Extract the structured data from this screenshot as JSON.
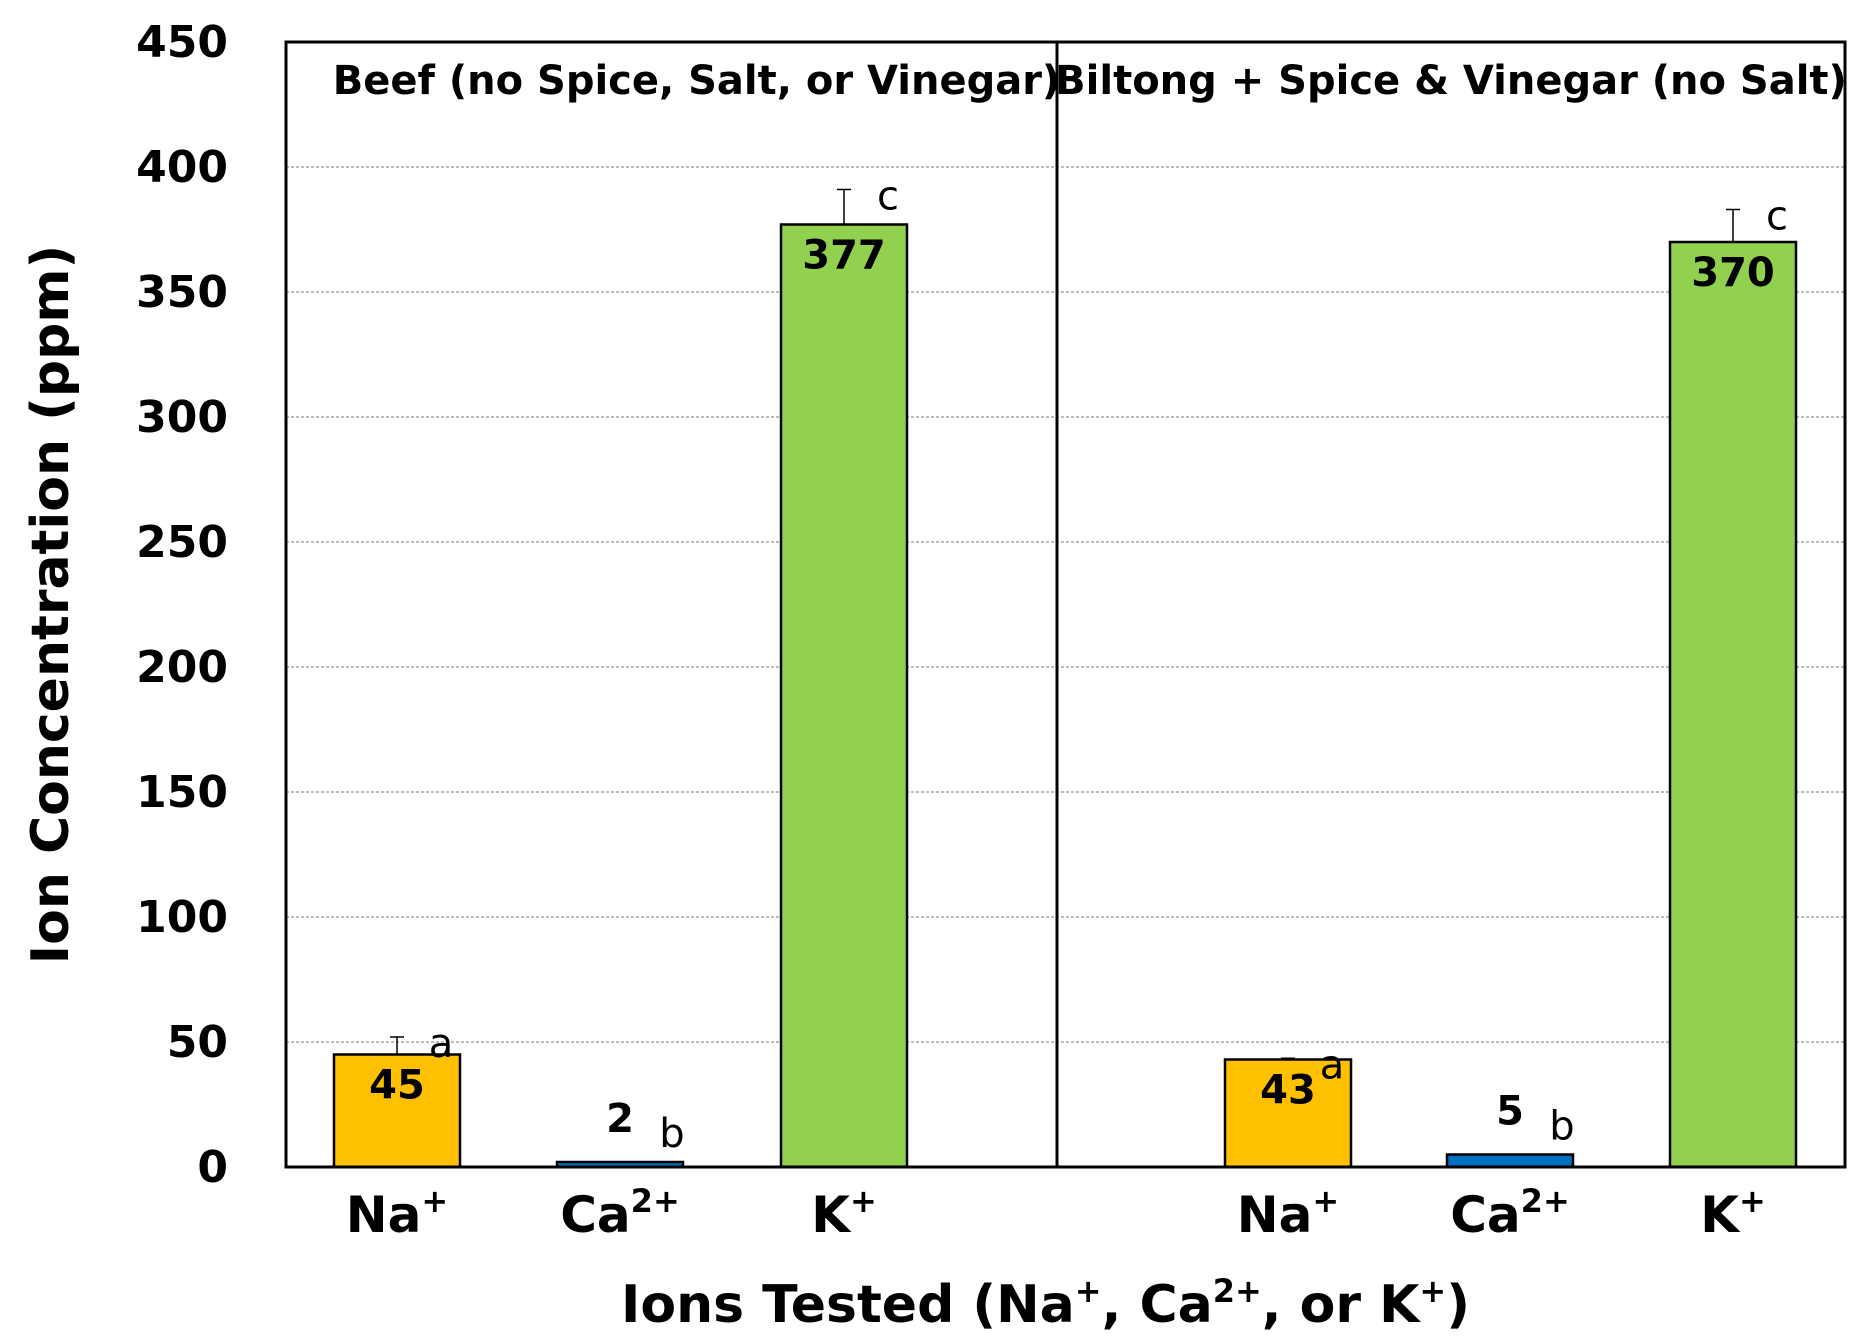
{
  "chart_data": {
    "type": "bar",
    "ylabel": "Ion Concentration (ppm)",
    "xlabel": {
      "parts": [
        {
          "text": "Ions Tested (Na"
        },
        {
          "text": "+",
          "sup": true
        },
        {
          "text": ", Ca"
        },
        {
          "text": "2+",
          "sup": true
        },
        {
          "text": ", or K"
        },
        {
          "text": "+",
          "sup": true
        },
        {
          "text": ")"
        }
      ]
    },
    "ylim": [
      0,
      450
    ],
    "yticks": [
      0,
      50,
      100,
      150,
      200,
      250,
      300,
      350,
      400,
      450
    ],
    "grid": true,
    "colors": {
      "Na": "#ffc000",
      "Ca": "#0070c0",
      "K": "#92d050"
    },
    "panels": [
      {
        "title": "Beef (no Spice, Salt, or Vinegar)",
        "bars": [
          {
            "ion": "Na",
            "base": "Na",
            "sup": "+",
            "value": 45,
            "value_label": "45",
            "error": 7,
            "letter": "a"
          },
          {
            "ion": "Ca",
            "base": "Ca",
            "sup": "2+",
            "value": 2,
            "value_label": "2",
            "error": 0,
            "letter": "b"
          },
          {
            "ion": "K",
            "base": "K",
            "sup": "+",
            "value": 377,
            "value_label": "377",
            "error": 14,
            "letter": "c"
          }
        ]
      },
      {
        "title": "Biltong + Spice & Vinegar (no Salt)",
        "bars": [
          {
            "ion": "Na",
            "base": "Na",
            "sup": "+",
            "value": 43,
            "value_label": "43",
            "error": 0.5,
            "letter": "a"
          },
          {
            "ion": "Ca",
            "base": "Ca",
            "sup": "2+",
            "value": 5,
            "value_label": "5",
            "error": 0,
            "letter": "b"
          },
          {
            "ion": "K",
            "base": "K",
            "sup": "+",
            "value": 370,
            "value_label": "370",
            "error": 13,
            "letter": "c"
          }
        ]
      }
    ]
  }
}
